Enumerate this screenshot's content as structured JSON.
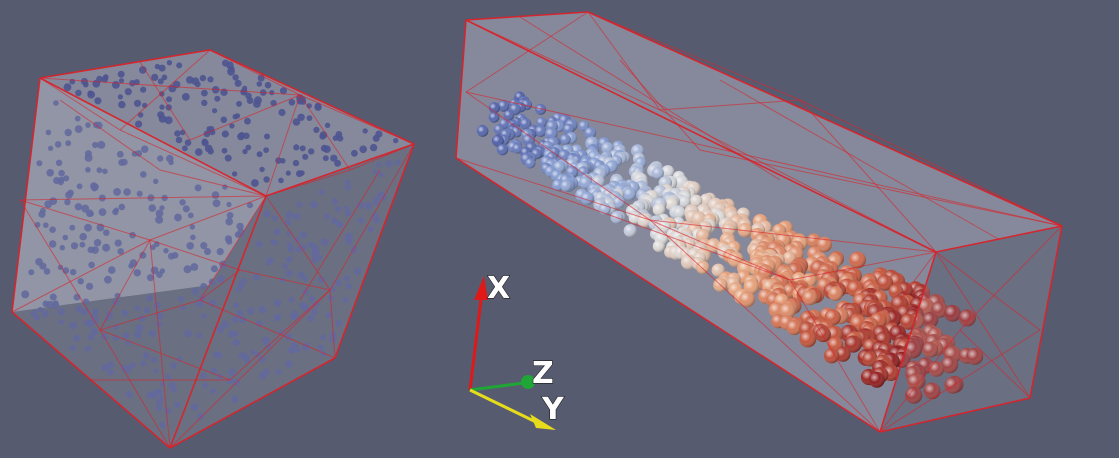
{
  "scene": {
    "background": "#575b70",
    "mesh_edge_color": "#d8232a",
    "glass_color": "#c9cbd6"
  },
  "left_mesh": {
    "particle_color": "#4e5490",
    "particle_count_approx": 520
  },
  "right_mesh": {
    "particle_gradient": [
      "#4f5fa8",
      "#8aa1d4",
      "#dcdcdc",
      "#e6a27b",
      "#c8593f",
      "#8e1a1e"
    ],
    "particle_count_approx": 600
  },
  "axes_triad": {
    "x": {
      "label": "X",
      "color": "#e01818"
    },
    "y": {
      "label": "Y",
      "color": "#e6dc1c"
    },
    "z": {
      "label": "Z",
      "color": "#1fa636"
    }
  }
}
